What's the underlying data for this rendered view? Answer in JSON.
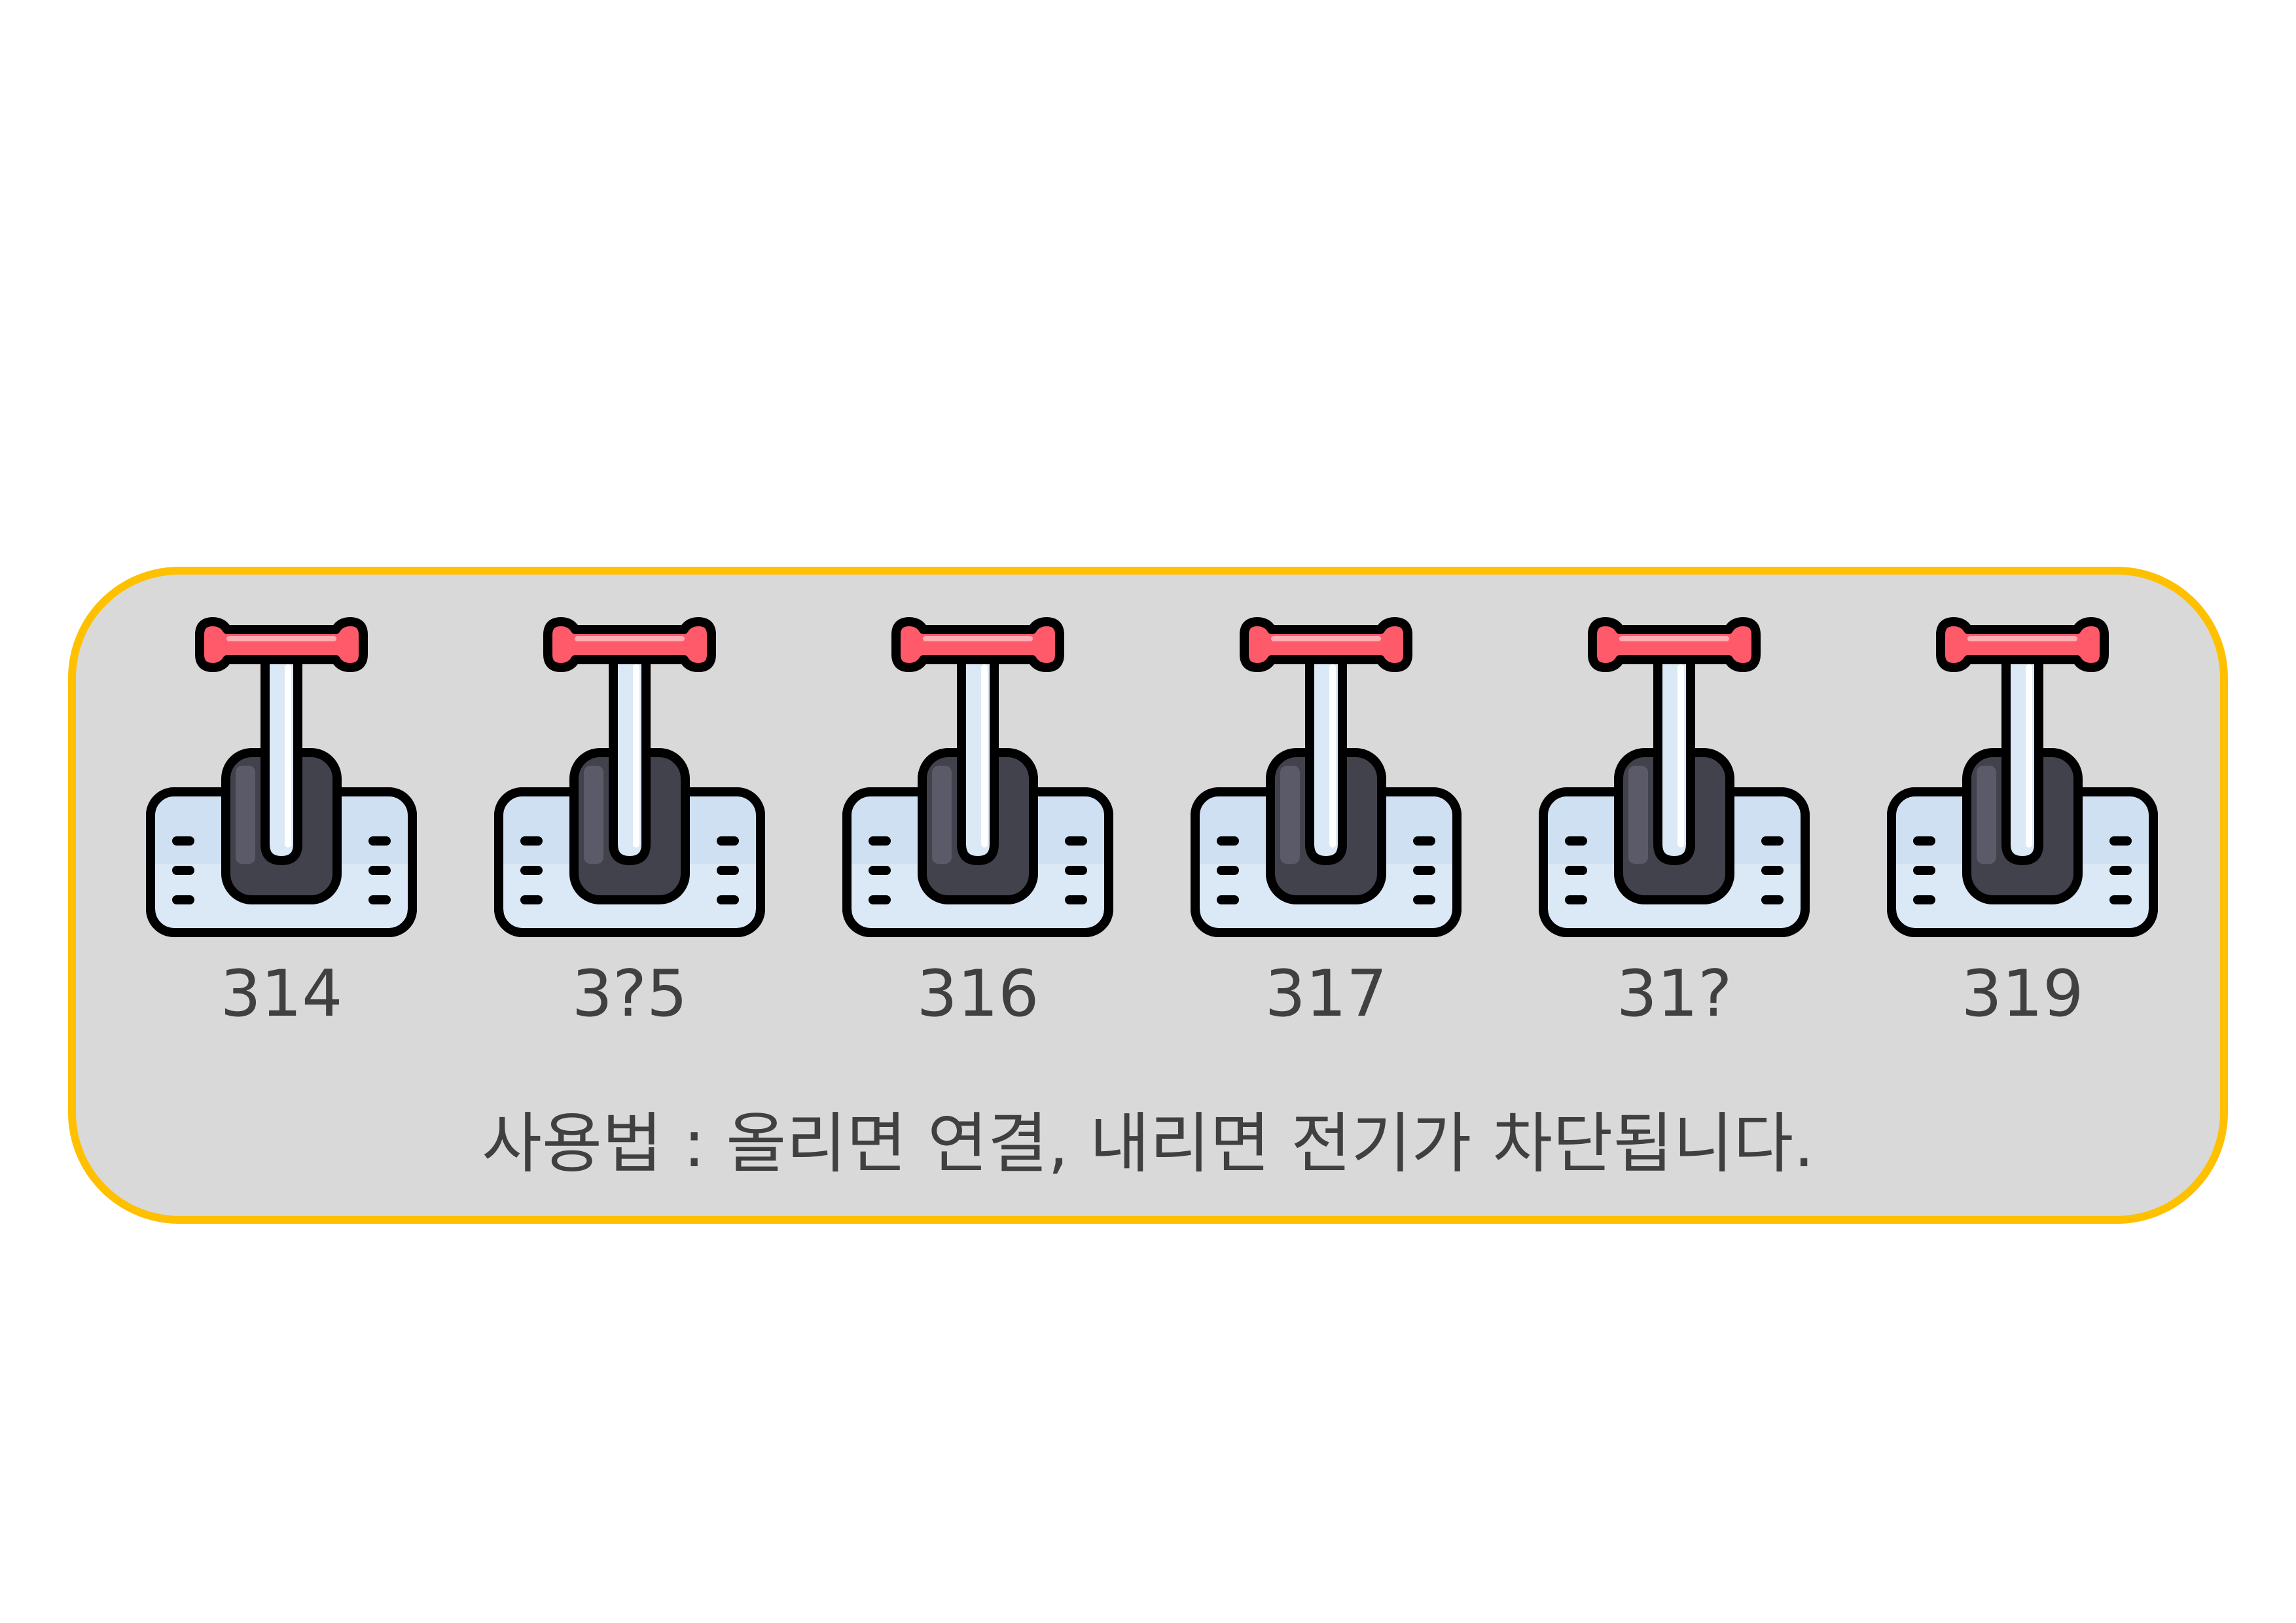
{
  "switches": [
    {
      "label": "314"
    },
    {
      "label": "3?5"
    },
    {
      "label": "316"
    },
    {
      "label": "317"
    },
    {
      "label": "31?"
    },
    {
      "label": "319"
    }
  ],
  "usage_text": "사용법 : 올리면 연결, 내리면 전기가 차단됩니다.",
  "colors": {
    "panel_fill": "#d9d9d9",
    "panel_border": "#ffc000",
    "handle": "#ff5a6a",
    "base": "#dbe8f5",
    "lever_box": "#4a4a55",
    "text": "#404040"
  },
  "icon": "lever-switch-icon"
}
